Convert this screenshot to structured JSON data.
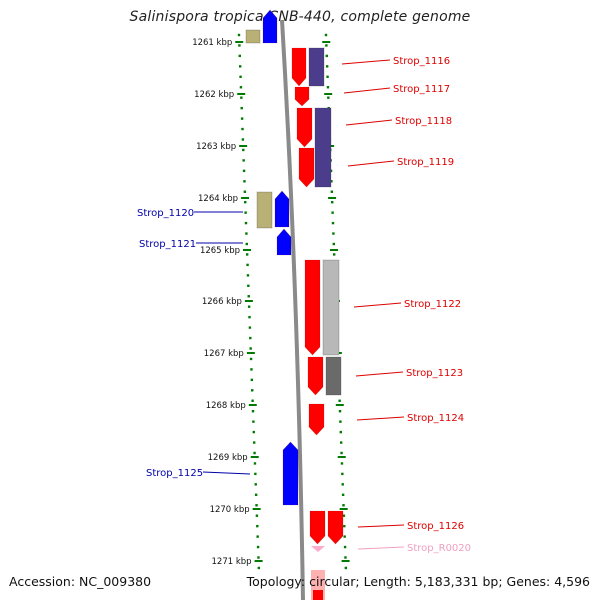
{
  "title": "Salinispora tropica CNB-440, complete genome",
  "accession": "Accession: NC_009380",
  "topology": "Topology: circular; Length: 5,183,331 bp; Genes: 4,596",
  "colors": {
    "cds": "#ff0000",
    "cds_reverse": "#0000ff",
    "rna": "#ffaacc",
    "backbone": "#8a8a8a",
    "ticks": "#007a00",
    "label_forward": "#dd0000",
    "label_reverse": "#0000aa",
    "label_rna": "#f0a0c0"
  },
  "kbp_ticks": [
    "1261 kbp",
    "1262 kbp",
    "1263 kbp",
    "1264 kbp",
    "1265 kbp",
    "1266 kbp",
    "1267 kbp",
    "1268 kbp",
    "1269 kbp",
    "1270 kbp",
    "1271 kbp"
  ],
  "features": [
    {
      "label": "Strop_1116",
      "strand": "forward",
      "type": "CDS",
      "cog_color": "#4b3c8c"
    },
    {
      "label": "Strop_1117",
      "strand": "forward",
      "type": "CDS",
      "cog_color": ""
    },
    {
      "label": "Strop_1118",
      "strand": "forward",
      "type": "CDS",
      "cog_color": "#4b3c8c"
    },
    {
      "label": "Strop_1119",
      "strand": "forward",
      "type": "CDS",
      "cog_color": "#4b3c8c"
    },
    {
      "label": "Strop_1120",
      "strand": "reverse",
      "type": "CDS",
      "cog_color": "#b8b074"
    },
    {
      "label": "Strop_1121",
      "strand": "reverse",
      "type": "CDS",
      "cog_color": ""
    },
    {
      "label": "Strop_1122",
      "strand": "forward",
      "type": "CDS",
      "cog_color": "#b8b8b8"
    },
    {
      "label": "Strop_1123",
      "strand": "forward",
      "type": "CDS",
      "cog_color": "#6a6a6a"
    },
    {
      "label": "Strop_1124",
      "strand": "forward",
      "type": "CDS",
      "cog_color": ""
    },
    {
      "label": "Strop_1125",
      "strand": "reverse",
      "type": "CDS",
      "cog_color": ""
    },
    {
      "label": "Strop_1126",
      "strand": "forward",
      "type": "CDS",
      "cog_color": "#ff0000"
    },
    {
      "label": "Strop_R0020",
      "strand": "forward",
      "type": "RNA",
      "cog_color": ""
    }
  ]
}
